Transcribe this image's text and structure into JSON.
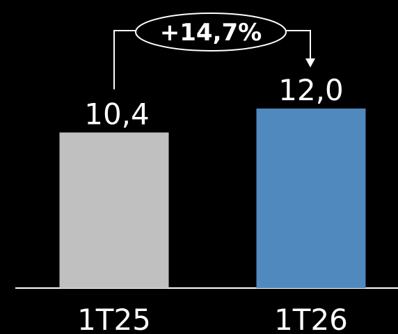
{
  "chart_data": {
    "type": "bar",
    "categories": [
      "1T25",
      "1T26"
    ],
    "values": [
      10.4,
      12.0
    ],
    "value_labels": [
      "10,4",
      "12,0"
    ],
    "bar_colors": [
      "#c0c0c0",
      "#4f89bd"
    ],
    "ylim": [
      0,
      12.0
    ],
    "grid": false,
    "legend": "none",
    "annotation": {
      "text": "+14,7%",
      "from_category": "1T25",
      "to_category": "1T26"
    }
  },
  "colors": {
    "background": "#000000",
    "text": "#ffffff",
    "axis": "#ffffff"
  }
}
